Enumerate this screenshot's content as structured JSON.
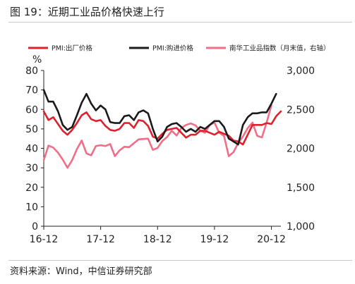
{
  "figure": {
    "title": "图 19：近期工业品价格快速上行",
    "source": "资料来源：Wind，中信证券研究部"
  },
  "chart_data": {
    "type": "line",
    "y_unit": "%",
    "x_tick_labels": [
      "16-12",
      "17-12",
      "18-12",
      "19-12",
      "20-12"
    ],
    "x_tick_index": [
      0,
      12,
      24,
      36,
      48
    ],
    "ylim_left": [
      0,
      80
    ],
    "yticks_left": [
      0,
      10,
      20,
      30,
      40,
      50,
      60,
      70,
      80
    ],
    "ylim_right": [
      1000,
      3000
    ],
    "yticks_right": [
      "1,000",
      "1,500",
      "2,000",
      "2,500",
      "3,000"
    ],
    "yticks_right_values": [
      1000,
      1500,
      2000,
      2500,
      3000
    ],
    "legend_position": "top",
    "grid": false,
    "series": [
      {
        "name": "PMI:出厂价格",
        "axis": "left",
        "color": "#e0202c",
        "values": [
          59,
          54.5,
          56,
          52.5,
          49,
          47,
          49.5,
          53,
          57,
          58.5,
          55,
          54,
          54.5,
          51.5,
          49.5,
          49,
          50,
          53,
          53,
          50.5,
          54.5,
          54,
          51.5,
          46,
          45,
          47.5,
          49.5,
          50,
          50.5,
          48,
          45.5,
          47,
          47,
          49,
          49,
          48,
          47,
          48.5,
          47.5,
          46.5,
          44,
          43.5,
          42,
          47,
          52,
          52,
          52,
          53,
          52.5,
          56.5,
          59
        ]
      },
      {
        "name": "PMI:购进价格",
        "axis": "left",
        "color": "#1a1a1a",
        "values": [
          70,
          64,
          64,
          59,
          52,
          49.5,
          51,
          57,
          63.5,
          68,
          63,
          59.5,
          62,
          60,
          53.5,
          53,
          53,
          56.5,
          57,
          54.5,
          58.5,
          59.5,
          58,
          50,
          43.5,
          46,
          51,
          52.5,
          53,
          51,
          48.5,
          50,
          48.5,
          51,
          50,
          52,
          54,
          54,
          51,
          45,
          43.5,
          42,
          52,
          56,
          58,
          58,
          58.5,
          58.5,
          63,
          68
        ]
      },
      {
        "name": "南华工业品指数（月末值，右轴）",
        "axis": "right",
        "color": "#f06e87",
        "values": [
          1850,
          2035,
          2010,
          1945,
          1855,
          1750,
          1850,
          1990,
          2100,
          1935,
          1910,
          2030,
          2040,
          2030,
          2055,
          1900,
          1975,
          2020,
          2015,
          2065,
          2115,
          2120,
          2125,
          1980,
          2005,
          2095,
          2145,
          2225,
          2165,
          2260,
          2300,
          2320,
          2295,
          2225,
          2200,
          2300,
          2330,
          2200,
          2160,
          1900,
          1950,
          2070,
          2150,
          2260,
          2330,
          2160,
          2140,
          2330,
          2555
        ]
      }
    ]
  }
}
